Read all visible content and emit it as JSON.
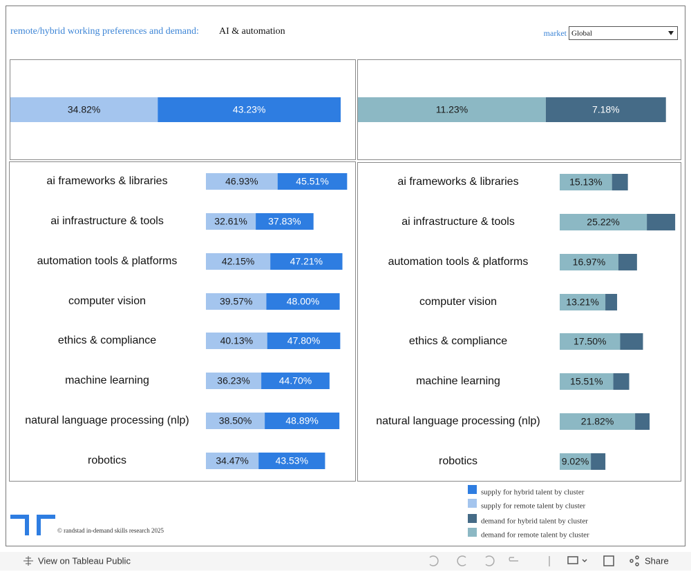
{
  "header": {
    "title": "remote/hybrid working preferences and demand:",
    "subtitle": "AI & automation",
    "filter_label": "market",
    "filter_value": "Global"
  },
  "chart_data": [
    {
      "type": "bar",
      "orientation": "horizontal",
      "stacked": true,
      "categories": [
        null
      ],
      "xlim": [
        0,
        80
      ],
      "series": [
        {
          "name": "supply for remote talent by cluster",
          "color": "#a4c5ee",
          "label_color": "#1a1a1a",
          "values": [
            34.82
          ],
          "value_labels": [
            "34.82%"
          ]
        },
        {
          "name": "supply for hybrid talent by cluster",
          "color": "#2e7de1",
          "label_color": "#ffffff",
          "values": [
            43.23
          ],
          "value_labels": [
            "43.23%"
          ]
        }
      ]
    },
    {
      "type": "bar",
      "orientation": "horizontal",
      "stacked": true,
      "categories": [
        null
      ],
      "xlim": [
        0,
        19
      ],
      "series": [
        {
          "name": "demand for remote talent by cluster",
          "color": "#8cb8c4",
          "label_color": "#1a1a1a",
          "values": [
            11.23
          ],
          "value_labels": [
            "11.23%"
          ]
        },
        {
          "name": "demand for hybrid talent by cluster",
          "color": "#456b87",
          "label_color": "#ffffff",
          "values": [
            7.18
          ],
          "value_labels": [
            "7.18%"
          ]
        }
      ]
    },
    {
      "type": "bar",
      "orientation": "horizontal",
      "stacked": true,
      "xlim": [
        0,
        95
      ],
      "categories": [
        "ai frameworks & libraries",
        "ai infrastructure & tools",
        "automation tools & platforms",
        "computer vision",
        "ethics & compliance",
        "machine learning",
        "natural language processing (nlp)",
        "robotics"
      ],
      "series": [
        {
          "color": "#a4c5ee",
          "label_color": "#1a1a1a",
          "values": [
            46.93,
            32.61,
            42.15,
            39.57,
            40.13,
            36.23,
            38.5,
            34.47
          ],
          "value_labels": [
            "46.93%",
            "32.61%",
            "42.15%",
            "39.57%",
            "40.13%",
            "36.23%",
            "38.50%",
            "34.47%"
          ]
        },
        {
          "color": "#2e7de1",
          "label_color": "#ffffff",
          "values": [
            45.51,
            37.83,
            47.21,
            48.0,
            47.8,
            44.7,
            48.89,
            43.53
          ],
          "value_labels": [
            "45.51%",
            "37.83%",
            "47.21%",
            "48.00%",
            "47.80%",
            "44.70%",
            "48.89%",
            "43.53%"
          ]
        }
      ]
    },
    {
      "type": "bar",
      "orientation": "horizontal",
      "stacked": true,
      "xlim": [
        0,
        34
      ],
      "categories": [
        "ai frameworks & libraries",
        "ai infrastructure & tools",
        "automation tools & platforms",
        "computer vision",
        "ethics & compliance",
        "machine learning",
        "natural language processing (nlp)",
        "robotics"
      ],
      "series": [
        {
          "color": "#8cb8c4",
          "label_color": "#1a1a1a",
          "values": [
            15.13,
            25.22,
            16.97,
            13.21,
            17.5,
            15.51,
            21.82,
            9.02
          ],
          "value_labels": [
            "15.13%",
            "25.22%",
            "16.97%",
            "13.21%",
            "17.50%",
            "15.51%",
            "21.82%",
            "9.02%"
          ]
        },
        {
          "color": "#456b87",
          "values": [
            4.6,
            8.2,
            5.4,
            3.4,
            6.6,
            4.6,
            4.2,
            4.2
          ]
        }
      ]
    }
  ],
  "footer": {
    "credit": "© randstad in-demand skills research 2025"
  },
  "toolbar": {
    "view": "View on Tableau Public",
    "share": "Share"
  }
}
